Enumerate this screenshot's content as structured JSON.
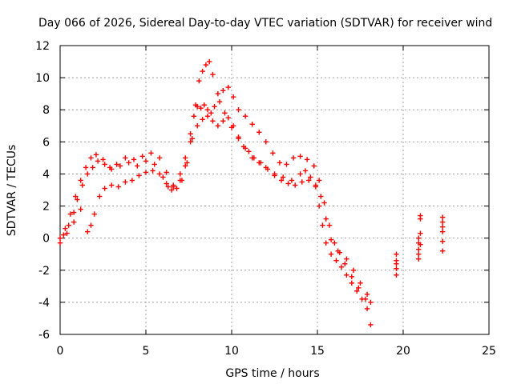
{
  "chart_data": {
    "type": "scatter",
    "title": "Day 066 of 2026, Sidereal Day-to-day VTEC variation (SDTVAR) for receiver wind",
    "xlabel": "GPS time / hours",
    "ylabel": "SDTVAR / TECUs",
    "xlim": [
      0,
      25
    ],
    "ylim": [
      -6,
      12
    ],
    "xticks": [
      0,
      5,
      10,
      15,
      20,
      25
    ],
    "yticks": [
      -6,
      -4,
      -2,
      0,
      2,
      4,
      6,
      8,
      10,
      12
    ],
    "grid": true,
    "marker": "+",
    "marker_color": "#ff0000",
    "series": [
      {
        "name": "main-track",
        "x": [
          0.0,
          0.2,
          0.5,
          0.8,
          1.0,
          1.3,
          1.6,
          1.9,
          2.2,
          2.6,
          3.0,
          3.5,
          4.0,
          4.5,
          5.0,
          5.5,
          6.0,
          6.3,
          6.6,
          7.0,
          7.3,
          7.6,
          7.8,
          8.0,
          8.2,
          8.4,
          8.6,
          8.8,
          9.0,
          9.3,
          9.6,
          10.0,
          10.4,
          10.8,
          11.2,
          11.6,
          12.0,
          12.5,
          13.0,
          13.5,
          14.0,
          14.3,
          14.6,
          14.9,
          15.1,
          15.3,
          15.5,
          15.8,
          16.1,
          16.4,
          16.7,
          17.0,
          17.3,
          17.6,
          17.9,
          18.1
        ],
        "y": [
          -0.3,
          0.2,
          0.8,
          1.6,
          2.4,
          3.3,
          4.0,
          4.4,
          4.8,
          4.6,
          4.3,
          4.5,
          4.7,
          4.5,
          4.8,
          4.6,
          3.8,
          3.2,
          3.3,
          4.0,
          5.0,
          6.5,
          7.6,
          8.2,
          8.1,
          8.3,
          8.0,
          7.8,
          8.2,
          8.5,
          7.8,
          6.9,
          6.2,
          5.6,
          5.0,
          4.7,
          4.4,
          4.0,
          3.8,
          3.6,
          4.0,
          4.2,
          3.8,
          3.2,
          2.0,
          0.8,
          -0.3,
          -1.0,
          -1.4,
          -1.8,
          -2.3,
          -2.8,
          -3.3,
          -3.8,
          -4.4,
          -5.4
        ]
      },
      {
        "name": "upper-track",
        "x": [
          0.0,
          0.3,
          0.6,
          0.9,
          1.2,
          1.5,
          1.8,
          2.1,
          2.5,
          2.9,
          3.3,
          3.8,
          4.3,
          4.8,
          5.3,
          5.8,
          6.2,
          6.6,
          7.0,
          7.3,
          7.6,
          7.9,
          8.1,
          8.3,
          8.5,
          8.7,
          8.9,
          9.2,
          9.5,
          9.8,
          10.1,
          10.4,
          10.8,
          11.2,
          11.6,
          12.0,
          12.4,
          12.8,
          13.2,
          13.6,
          14.0,
          14.4,
          14.8,
          15.1,
          15.4,
          15.7,
          16.0,
          16.3,
          16.7,
          17.1,
          17.5,
          17.9,
          18.1
        ],
        "y": [
          0.0,
          0.6,
          1.5,
          2.6,
          3.6,
          4.4,
          5.0,
          5.2,
          4.9,
          4.4,
          4.6,
          5.0,
          4.9,
          5.1,
          5.3,
          5.0,
          4.1,
          3.2,
          3.6,
          4.5,
          6.0,
          8.3,
          9.8,
          10.4,
          10.8,
          11.0,
          10.2,
          9.0,
          9.2,
          9.4,
          8.8,
          8.0,
          7.6,
          7.1,
          6.6,
          6.0,
          5.3,
          4.7,
          4.6,
          5.0,
          5.1,
          4.9,
          4.5,
          3.6,
          2.2,
          0.8,
          -0.3,
          -0.9,
          -1.3,
          -2.0,
          -2.8,
          -3.5,
          -4.0
        ]
      },
      {
        "name": "lower-track",
        "x": [
          0.4,
          0.8,
          1.2,
          1.6,
          1.8,
          2.0,
          2.3,
          2.6,
          3.0,
          3.4,
          3.8,
          4.2,
          4.6,
          5.0,
          5.4,
          5.8,
          6.2,
          6.5,
          6.8,
          7.1,
          7.4,
          7.7,
          8.0,
          8.3,
          8.6,
          8.9,
          9.2,
          9.5,
          9.8,
          10.1,
          10.4,
          10.7,
          11.0,
          11.3,
          11.7,
          12.1,
          12.5,
          12.9,
          13.3,
          13.7,
          14.1,
          14.5,
          14.9,
          15.2,
          15.5,
          15.8,
          16.2,
          16.6,
          17.0,
          17.4,
          17.8
        ],
        "y": [
          0.3,
          1.0,
          1.8,
          0.4,
          0.8,
          1.5,
          2.6,
          3.1,
          3.3,
          3.2,
          3.5,
          3.6,
          3.9,
          4.1,
          4.2,
          4.0,
          3.4,
          3.0,
          3.1,
          3.6,
          4.7,
          6.2,
          7.0,
          7.4,
          7.6,
          7.3,
          7.0,
          7.3,
          7.5,
          7.0,
          6.3,
          5.7,
          5.4,
          5.0,
          4.7,
          4.3,
          3.9,
          3.6,
          3.4,
          3.3,
          3.5,
          3.6,
          3.3,
          2.6,
          1.2,
          -0.1,
          -0.8,
          -1.6,
          -2.4,
          -3.1,
          -3.8
        ]
      },
      {
        "name": "late-clusters",
        "x": [
          19.6,
          19.6,
          19.6,
          19.6,
          19.6,
          20.9,
          20.9,
          20.9,
          20.9,
          20.9,
          21.0,
          21.0,
          21.0,
          21.0,
          22.3,
          22.3,
          22.3,
          22.3,
          22.3,
          22.3
        ],
        "y": [
          -2.3,
          -1.9,
          -1.6,
          -1.4,
          -1.0,
          -1.3,
          -1.0,
          -0.7,
          -0.3,
          0.0,
          0.3,
          1.2,
          1.4,
          -0.4,
          -0.8,
          -0.2,
          0.4,
          0.7,
          1.0,
          1.3
        ]
      }
    ]
  }
}
